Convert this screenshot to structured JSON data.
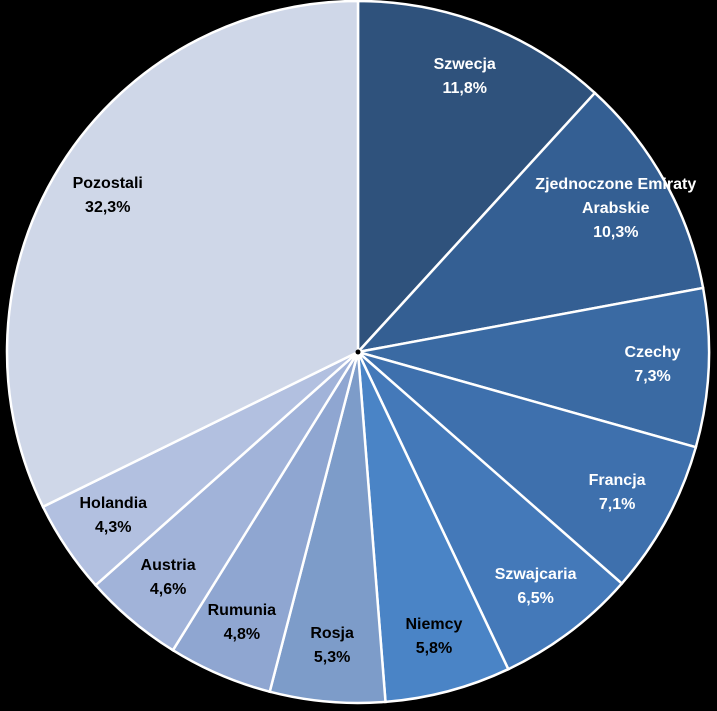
{
  "chart_data": {
    "type": "pie",
    "categories": [
      "Szwecja",
      "Zjednoczone Emiraty Arabskie",
      "Czechy",
      "Francja",
      "Szwajcaria",
      "Niemcy",
      "Rosja",
      "Rumunia",
      "Austria",
      "Holandia",
      "Pozostali"
    ],
    "values": [
      11.8,
      10.3,
      7.3,
      7.1,
      6.5,
      5.8,
      5.3,
      4.8,
      4.6,
      4.3,
      32.3
    ],
    "value_labels": [
      "11,8%",
      "10,3%",
      "7,3%",
      "7,1%",
      "6,5%",
      "5,8%",
      "5,3%",
      "4,8%",
      "4,6%",
      "4,3%",
      "32,3%"
    ],
    "colors": [
      "#2f527c",
      "#345f93",
      "#3a6aa3",
      "#3e70ad",
      "#4479b9",
      "#4a84c6",
      "#7d9cc9",
      "#8fa6d1",
      "#a1b3d9",
      "#b2c0e0",
      "#cfd7e8"
    ],
    "label_colors": [
      "#ffffff",
      "#ffffff",
      "#ffffff",
      "#ffffff",
      "#ffffff",
      "#000000",
      "#000000",
      "#000000",
      "#000000",
      "#000000",
      "#000000"
    ]
  }
}
